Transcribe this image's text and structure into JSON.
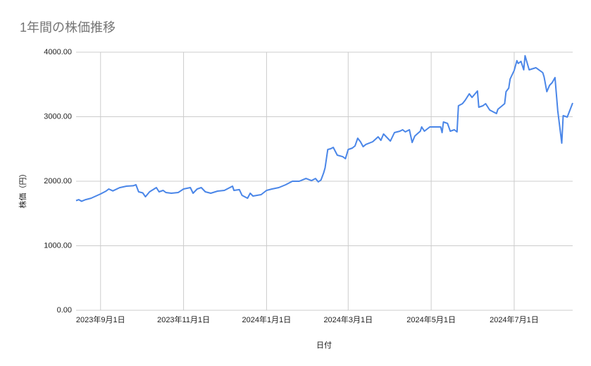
{
  "chart_data": {
    "type": "line",
    "title": "1年間の株価推移",
    "x_label": "日付",
    "y_label": "株価（円）",
    "color": "#4a86e8",
    "grid": true,
    "ylim": [
      0,
      4000
    ],
    "yticks": [
      {
        "value": 0,
        "label": "0.00"
      },
      {
        "value": 1000,
        "label": "1000.00"
      },
      {
        "value": 2000,
        "label": "2000.00"
      },
      {
        "value": 3000,
        "label": "3000.00"
      },
      {
        "value": 4000,
        "label": "4000.00"
      }
    ],
    "xlim": [
      "2023-08-14",
      "2024-08-13"
    ],
    "xticks": [
      {
        "value": "2023-09-01",
        "label": "2023年9月1日"
      },
      {
        "value": "2023-11-01",
        "label": "2023年11月1日"
      },
      {
        "value": "2024-01-01",
        "label": "2024年1月1日"
      },
      {
        "value": "2024-03-01",
        "label": "2024年3月1日"
      },
      {
        "value": "2024-05-01",
        "label": "2024年5月1日"
      },
      {
        "value": "2024-07-01",
        "label": "2024年7月1日"
      }
    ],
    "x": [
      "2023-08-14",
      "2023-08-16",
      "2023-08-18",
      "2023-08-21",
      "2023-08-25",
      "2023-09-01",
      "2023-09-05",
      "2023-09-07",
      "2023-09-10",
      "2023-09-15",
      "2023-09-20",
      "2023-09-25",
      "2023-09-27",
      "2023-09-29",
      "2023-10-02",
      "2023-10-04",
      "2023-10-07",
      "2023-10-12",
      "2023-10-14",
      "2023-10-17",
      "2023-10-19",
      "2023-10-23",
      "2023-10-28",
      "2023-11-01",
      "2023-11-06",
      "2023-11-08",
      "2023-11-11",
      "2023-11-14",
      "2023-11-17",
      "2023-11-21",
      "2023-11-26",
      "2023-12-01",
      "2023-12-07",
      "2023-12-08",
      "2023-12-12",
      "2023-12-14",
      "2023-12-18",
      "2023-12-20",
      "2023-12-22",
      "2023-12-28",
      "2024-01-01",
      "2024-01-05",
      "2024-01-10",
      "2024-01-15",
      "2024-01-20",
      "2024-01-25",
      "2024-01-30",
      "2024-02-03",
      "2024-02-06",
      "2024-02-08",
      "2024-02-10",
      "2024-02-12",
      "2024-02-13",
      "2024-02-15",
      "2024-02-17",
      "2024-02-19",
      "2024-02-22",
      "2024-02-26",
      "2024-02-28",
      "2024-03-01",
      "2024-03-04",
      "2024-03-06",
      "2024-03-08",
      "2024-03-10",
      "2024-03-12",
      "2024-03-14",
      "2024-03-19",
      "2024-03-23",
      "2024-03-25",
      "2024-03-27",
      "2024-03-29",
      "2024-04-01",
      "2024-04-04",
      "2024-04-08",
      "2024-04-10",
      "2024-04-12",
      "2024-04-15",
      "2024-04-17",
      "2024-04-19",
      "2024-04-23",
      "2024-04-24",
      "2024-04-26",
      "2024-04-30",
      "2024-05-02",
      "2024-05-08",
      "2024-05-09",
      "2024-05-10",
      "2024-05-13",
      "2024-05-15",
      "2024-05-18",
      "2024-05-20",
      "2024-05-21",
      "2024-05-24",
      "2024-05-26",
      "2024-05-29",
      "2024-05-31",
      "2024-06-04",
      "2024-06-05",
      "2024-06-08",
      "2024-06-10",
      "2024-06-13",
      "2024-06-15",
      "2024-06-18",
      "2024-06-19",
      "2024-06-24",
      "2024-06-25",
      "2024-06-27",
      "2024-06-28",
      "2024-07-01",
      "2024-07-03",
      "2024-07-04",
      "2024-07-06",
      "2024-07-08",
      "2024-07-09",
      "2024-07-12",
      "2024-07-17",
      "2024-07-22",
      "2024-07-23",
      "2024-07-25",
      "2024-07-27",
      "2024-07-29",
      "2024-07-31",
      "2024-08-02",
      "2024-08-05",
      "2024-08-06",
      "2024-08-09",
      "2024-08-13"
    ],
    "values": [
      1700,
      1715,
      1690,
      1715,
      1737,
      1803,
      1847,
      1880,
      1850,
      1900,
      1923,
      1930,
      1945,
      1836,
      1820,
      1760,
      1836,
      1902,
      1836,
      1858,
      1825,
      1814,
      1825,
      1880,
      1902,
      1814,
      1880,
      1902,
      1836,
      1814,
      1847,
      1858,
      1923,
      1858,
      1870,
      1781,
      1737,
      1814,
      1770,
      1792,
      1858,
      1880,
      1902,
      1945,
      2000,
      2000,
      2043,
      2010,
      2043,
      1990,
      2020,
      2131,
      2208,
      2492,
      2503,
      2525,
      2404,
      2380,
      2350,
      2492,
      2514,
      2547,
      2667,
      2612,
      2536,
      2570,
      2612,
      2689,
      2634,
      2732,
      2689,
      2623,
      2754,
      2776,
      2798,
      2765,
      2798,
      2601,
      2700,
      2776,
      2842,
      2776,
      2842,
      2842,
      2842,
      2754,
      2918,
      2896,
      2776,
      2798,
      2765,
      3169,
      3202,
      3256,
      3355,
      3300,
      3399,
      3147,
      3169,
      3202,
      3104,
      3082,
      3049,
      3115,
      3202,
      3388,
      3443,
      3585,
      3716,
      3869,
      3825,
      3858,
      3727,
      3945,
      3727,
      3760,
      3683,
      3617,
      3388,
      3486,
      3530,
      3607,
      3093,
      2590,
      3016,
      2995,
      3213
    ]
  }
}
